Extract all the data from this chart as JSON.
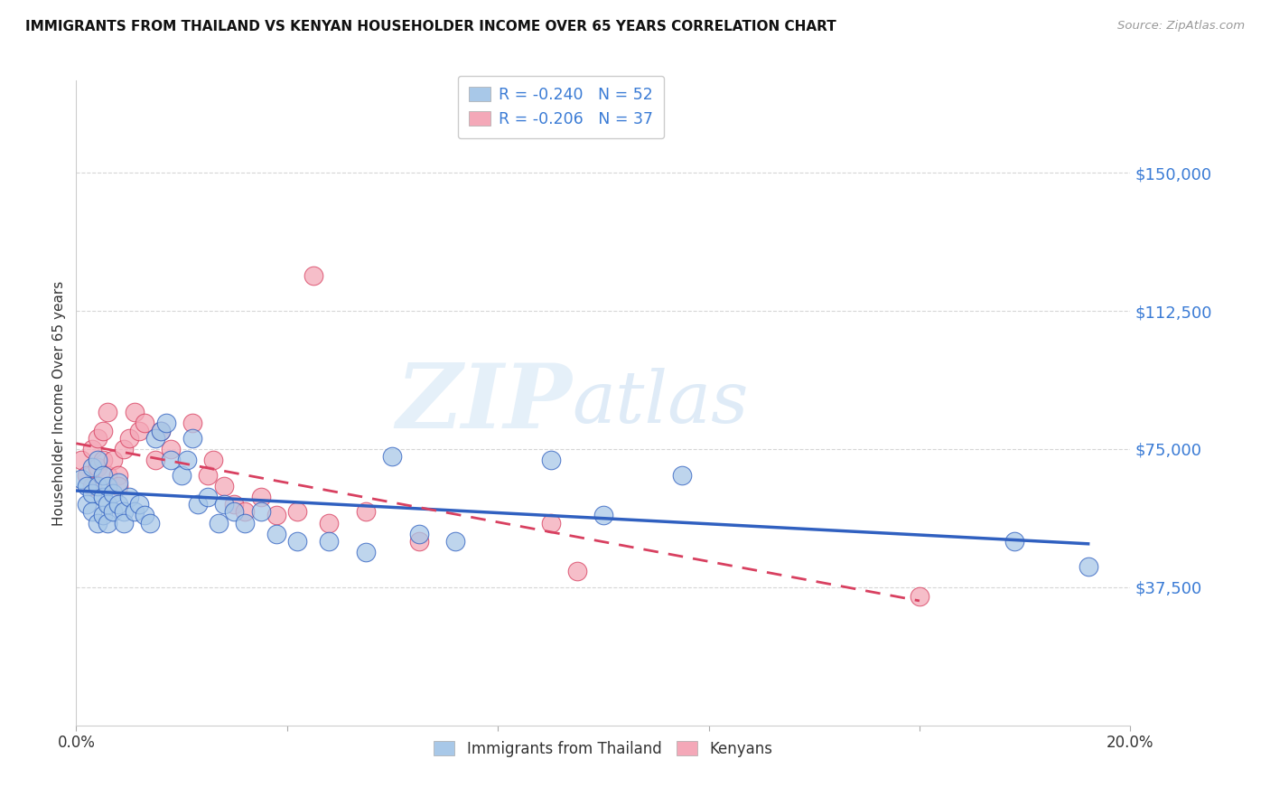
{
  "title": "IMMIGRANTS FROM THAILAND VS KENYAN HOUSEHOLDER INCOME OVER 65 YEARS CORRELATION CHART",
  "source": "Source: ZipAtlas.com",
  "ylabel": "Householder Income Over 65 years",
  "xlim": [
    0.0,
    0.2
  ],
  "ylim": [
    0,
    175000
  ],
  "yticks": [
    37500,
    75000,
    112500,
    150000
  ],
  "ytick_labels": [
    "$37,500",
    "$75,000",
    "$112,500",
    "$150,000"
  ],
  "xticks": [
    0.0,
    0.04,
    0.08,
    0.12,
    0.16,
    0.2
  ],
  "xtick_labels": [
    "0.0%",
    "",
    "",
    "",
    "",
    "20.0%"
  ],
  "legend_r1": "R = -0.240   N = 52",
  "legend_r2": "R = -0.206   N = 37",
  "color_blue": "#a8c8e8",
  "color_pink": "#f4a8b8",
  "line_blue": "#3060c0",
  "line_pink": "#d84060",
  "title_color": "#111111",
  "source_color": "#999999",
  "ytick_color": "#3a7bd5",
  "thailand_x": [
    0.001,
    0.002,
    0.002,
    0.003,
    0.003,
    0.003,
    0.004,
    0.004,
    0.004,
    0.005,
    0.005,
    0.005,
    0.006,
    0.006,
    0.006,
    0.007,
    0.007,
    0.008,
    0.008,
    0.009,
    0.009,
    0.01,
    0.011,
    0.012,
    0.013,
    0.014,
    0.015,
    0.016,
    0.017,
    0.018,
    0.02,
    0.021,
    0.022,
    0.023,
    0.025,
    0.027,
    0.028,
    0.03,
    0.032,
    0.035,
    0.038,
    0.042,
    0.048,
    0.055,
    0.06,
    0.065,
    0.072,
    0.09,
    0.1,
    0.115,
    0.178,
    0.192
  ],
  "thailand_y": [
    67000,
    65000,
    60000,
    70000,
    63000,
    58000,
    72000,
    65000,
    55000,
    68000,
    62000,
    57000,
    65000,
    60000,
    55000,
    63000,
    58000,
    66000,
    60000,
    58000,
    55000,
    62000,
    58000,
    60000,
    57000,
    55000,
    78000,
    80000,
    82000,
    72000,
    68000,
    72000,
    78000,
    60000,
    62000,
    55000,
    60000,
    58000,
    55000,
    58000,
    52000,
    50000,
    50000,
    47000,
    73000,
    52000,
    50000,
    72000,
    57000,
    68000,
    50000,
    43000
  ],
  "kenya_x": [
    0.001,
    0.002,
    0.003,
    0.003,
    0.004,
    0.004,
    0.005,
    0.005,
    0.006,
    0.006,
    0.007,
    0.008,
    0.008,
    0.009,
    0.01,
    0.011,
    0.012,
    0.013,
    0.015,
    0.016,
    0.018,
    0.022,
    0.025,
    0.026,
    0.028,
    0.03,
    0.032,
    0.035,
    0.038,
    0.042,
    0.048,
    0.055,
    0.065,
    0.09,
    0.095,
    0.16,
    0.045
  ],
  "kenya_y": [
    72000,
    68000,
    75000,
    65000,
    78000,
    70000,
    80000,
    72000,
    85000,
    68000,
    72000,
    68000,
    65000,
    75000,
    78000,
    85000,
    80000,
    82000,
    72000,
    80000,
    75000,
    82000,
    68000,
    72000,
    65000,
    60000,
    58000,
    62000,
    57000,
    58000,
    55000,
    58000,
    50000,
    55000,
    42000,
    35000,
    122000
  ]
}
